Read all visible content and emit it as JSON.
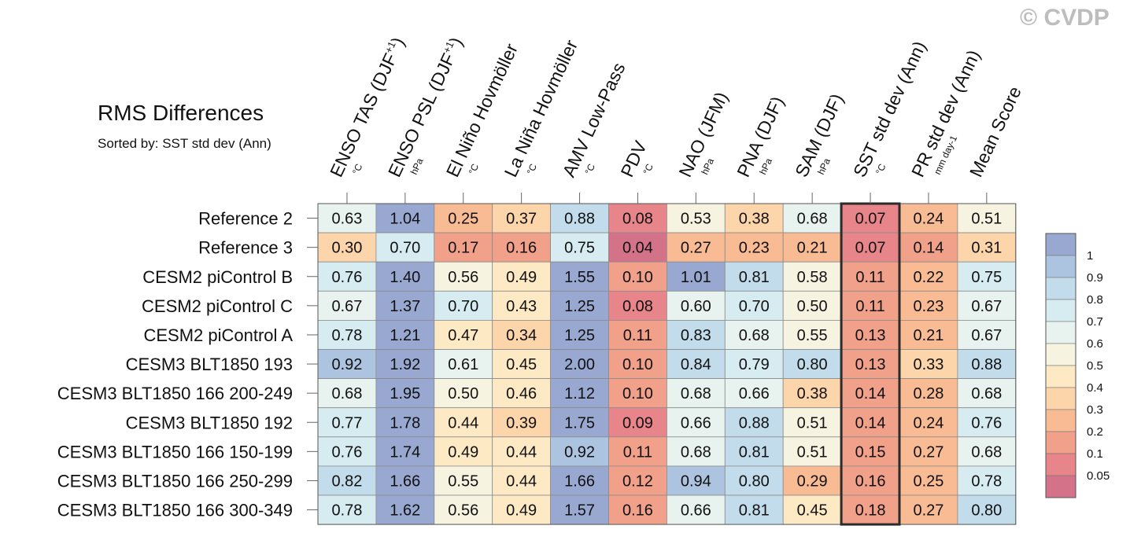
{
  "title": "RMS Differences",
  "subtitle": "Sorted by: SST std dev (Ann)",
  "watermark": "© CVDP",
  "chart_data": {
    "type": "heatmap",
    "title": "RMS Differences",
    "subtitle": "Sorted by: SST std dev (Ann)",
    "columns": [
      {
        "label": "ENSO TAS (DJF+1)",
        "base": "ENSO TAS (DJF",
        "sup": "+1",
        "tail": ")",
        "unit": "°C"
      },
      {
        "label": "ENSO PSL (DJF+1)",
        "base": "ENSO PSL (DJF",
        "sup": "+1",
        "tail": ")",
        "unit": "hPa"
      },
      {
        "label": "El Niño Hovmöller",
        "base": "El Niño Hovmöller",
        "sup": "",
        "tail": "",
        "unit": "°C"
      },
      {
        "label": "La Niña Hovmöller",
        "base": "La Niña Hovmöller",
        "sup": "",
        "tail": "",
        "unit": "°C"
      },
      {
        "label": "AMV Low-Pass",
        "base": "AMV Low-Pass",
        "sup": "",
        "tail": "",
        "unit": "°C"
      },
      {
        "label": "PDV",
        "base": "PDV",
        "sup": "",
        "tail": "",
        "unit": "°C"
      },
      {
        "label": "NAO (JFM)",
        "base": "NAO (JFM)",
        "sup": "",
        "tail": "",
        "unit": "hPa"
      },
      {
        "label": "PNA (DJF)",
        "base": "PNA (DJF)",
        "sup": "",
        "tail": "",
        "unit": "hPa"
      },
      {
        "label": "SAM (DJF)",
        "base": "SAM (DJF)",
        "sup": "",
        "tail": "",
        "unit": "hPa"
      },
      {
        "label": "SST std dev (Ann)",
        "base": "SST std dev (Ann)",
        "sup": "",
        "tail": "",
        "unit": "°C"
      },
      {
        "label": "PR std dev (Ann)",
        "base": "PR std dev (Ann)",
        "sup": "",
        "tail": "",
        "unit": "mm day-1"
      },
      {
        "label": "Mean Score",
        "base": "Mean Score",
        "sup": "",
        "tail": "",
        "unit": ""
      }
    ],
    "rows": [
      "Reference 2",
      "Reference 3",
      "CESM2 piControl B",
      "CESM2 piControl C",
      "CESM2 piControl A",
      "CESM3 BLT1850 193",
      "CESM3 BLT1850 166 200-249",
      "CESM3 BLT1850 192",
      "CESM3 BLT1850 166 150-199",
      "CESM3 BLT1850 166 250-299",
      "CESM3 BLT1850 166 300-349"
    ],
    "values": [
      [
        "0.63",
        "1.04",
        "0.25",
        "0.37",
        "0.88",
        "0.08",
        "0.53",
        "0.38",
        "0.68",
        "0.07",
        "0.24",
        "0.51"
      ],
      [
        "0.30",
        "0.70",
        "0.17",
        "0.16",
        "0.75",
        "0.04",
        "0.27",
        "0.23",
        "0.21",
        "0.07",
        "0.14",
        "0.31"
      ],
      [
        "0.76",
        "1.40",
        "0.56",
        "0.49",
        "1.55",
        "0.10",
        "1.01",
        "0.81",
        "0.58",
        "0.11",
        "0.22",
        "0.75"
      ],
      [
        "0.67",
        "1.37",
        "0.70",
        "0.43",
        "1.25",
        "0.08",
        "0.60",
        "0.70",
        "0.50",
        "0.11",
        "0.23",
        "0.67"
      ],
      [
        "0.78",
        "1.21",
        "0.47",
        "0.34",
        "1.25",
        "0.11",
        "0.83",
        "0.68",
        "0.55",
        "0.13",
        "0.21",
        "0.67"
      ],
      [
        "0.92",
        "1.92",
        "0.61",
        "0.45",
        "2.00",
        "0.10",
        "0.84",
        "0.79",
        "0.80",
        "0.13",
        "0.33",
        "0.88"
      ],
      [
        "0.68",
        "1.95",
        "0.50",
        "0.46",
        "1.12",
        "0.10",
        "0.68",
        "0.66",
        "0.38",
        "0.14",
        "0.28",
        "0.68"
      ],
      [
        "0.77",
        "1.78",
        "0.44",
        "0.39",
        "1.75",
        "0.09",
        "0.66",
        "0.88",
        "0.51",
        "0.14",
        "0.24",
        "0.76"
      ],
      [
        "0.76",
        "1.74",
        "0.49",
        "0.44",
        "0.92",
        "0.11",
        "0.68",
        "0.81",
        "0.51",
        "0.15",
        "0.27",
        "0.68"
      ],
      [
        "0.82",
        "1.66",
        "0.55",
        "0.44",
        "1.66",
        "0.12",
        "0.94",
        "0.80",
        "0.29",
        "0.16",
        "0.25",
        "0.78"
      ],
      [
        "0.78",
        "1.62",
        "0.56",
        "0.49",
        "1.57",
        "0.16",
        "0.66",
        "0.81",
        "0.45",
        "0.18",
        "0.27",
        "0.80"
      ]
    ],
    "sorted_by": "SST std dev (Ann)",
    "highlighted_column": 9,
    "colorbar": {
      "labels": [
        "1",
        "0.9",
        "0.8",
        "0.7",
        "0.6",
        "0.5",
        "0.4",
        "0.3",
        "0.2",
        "0.1",
        "0.05"
      ],
      "colors": [
        "#98a8d0",
        "#adc4e0",
        "#c2dceb",
        "#d6ecf1",
        "#e8f3ef",
        "#f6f3e0",
        "#fde9c4",
        "#fcd5aa",
        "#f8bb93",
        "#f1a08a",
        "#e8858a",
        "#d4728a"
      ]
    }
  }
}
